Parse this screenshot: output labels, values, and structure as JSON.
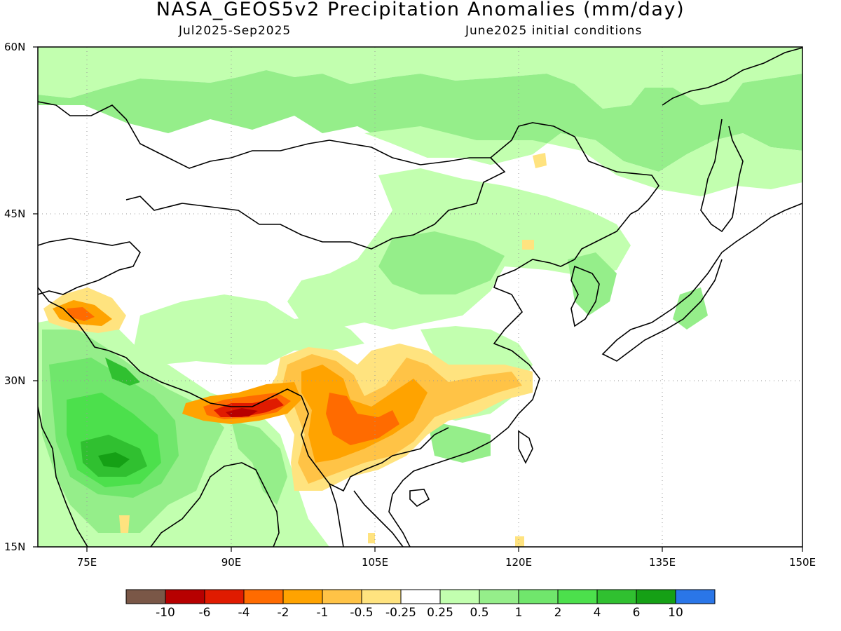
{
  "header": {
    "title": "NASA_GEOS5v2 Precipitation Anomalies (mm/day)",
    "period": "Jul2025-Sep2025",
    "init": "June2025 initial conditions"
  },
  "map": {
    "lat_labels": [
      "60N",
      "45N",
      "30N",
      "15N"
    ],
    "lon_labels": [
      "75E",
      "90E",
      "105E",
      "120E",
      "135E",
      "150E"
    ],
    "extent": {
      "lon": [
        70,
        150
      ],
      "lat": [
        15,
        60
      ]
    },
    "grid": "dotted"
  },
  "colorbar": {
    "colors": [
      "#7a5747",
      "#b70000",
      "#e01b00",
      "#ff6b00",
      "#ffa300",
      "#ffc346",
      "#ffe37f",
      "#ffffff",
      "#c2ffaf",
      "#95ee8a",
      "#70e66c",
      "#4ce04c",
      "#30c030",
      "#15a015",
      "#2a76e8"
    ],
    "labels": [
      "-10",
      "-6",
      "-4",
      "-2",
      "-1",
      "-0.5",
      "-0.25",
      "0.25",
      "0.5",
      "1",
      "2",
      "4",
      "6",
      "10"
    ]
  }
}
